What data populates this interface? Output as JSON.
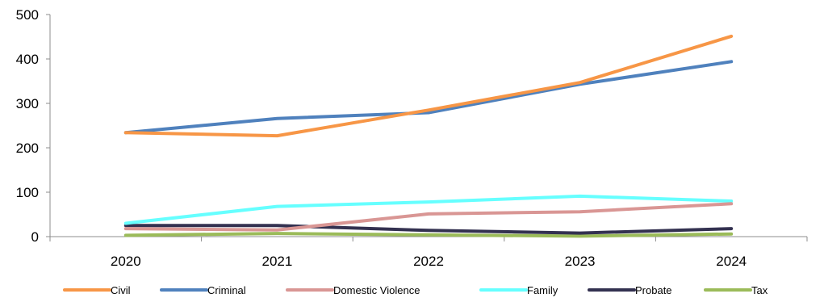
{
  "chart_data": {
    "type": "line",
    "title": "",
    "xlabel": "",
    "ylabel": "",
    "categories": [
      "2020",
      "2021",
      "2022",
      "2023",
      "2024"
    ],
    "ylim": [
      0,
      500
    ],
    "yticks": [
      0,
      100,
      200,
      300,
      400,
      500
    ],
    "grid": false,
    "legend_position": "bottom",
    "series": [
      {
        "name": "Civil",
        "color": "#F79646",
        "values": [
          234,
          227,
          285,
          347,
          451
        ]
      },
      {
        "name": "Criminal",
        "color": "#4F81BD",
        "values": [
          234,
          266,
          279,
          343,
          394
        ]
      },
      {
        "name": "Domestic Violence",
        "color": "#D99694",
        "values": [
          18,
          15,
          51,
          56,
          74
        ]
      },
      {
        "name": "Family",
        "color": "#66FFFF",
        "values": [
          30,
          68,
          78,
          91,
          80
        ]
      },
      {
        "name": "Probate",
        "color": "#333150",
        "values": [
          25,
          25,
          14,
          8,
          18
        ]
      },
      {
        "name": "Tax",
        "color": "#9BBB59",
        "values": [
          3,
          7,
          4,
          1,
          6
        ]
      }
    ]
  }
}
